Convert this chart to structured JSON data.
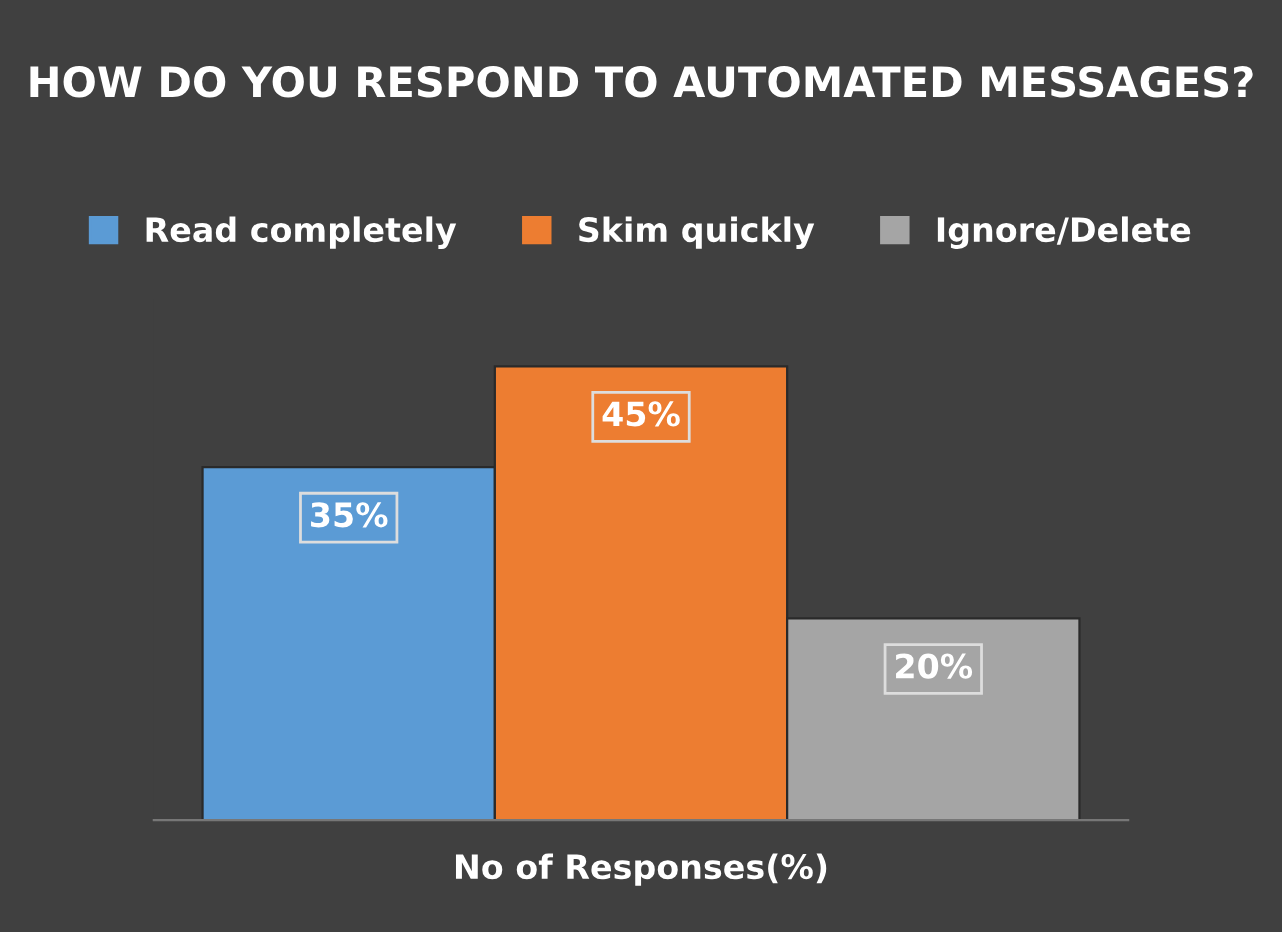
{
  "chart_data": {
    "type": "bar",
    "title": "HOW DO YOU RESPOND TO AUTOMATED MESSAGES?",
    "xlabel": "No of Responses(%)",
    "categories": [
      null
    ],
    "series": [
      {
        "name": "Read completely",
        "color": "#5b9bd5",
        "values": [
          35
        ],
        "value_labels": [
          "35%"
        ]
      },
      {
        "name": "Skim quickly",
        "color": "#ed7d31",
        "values": [
          45
        ],
        "value_labels": [
          "45%"
        ]
      },
      {
        "name": "Ignore/Delete",
        "color": "#a5a5a5",
        "values": [
          20
        ],
        "value_labels": [
          "20%"
        ]
      }
    ],
    "legend": "top",
    "grid": false,
    "tick_labels": false
  }
}
